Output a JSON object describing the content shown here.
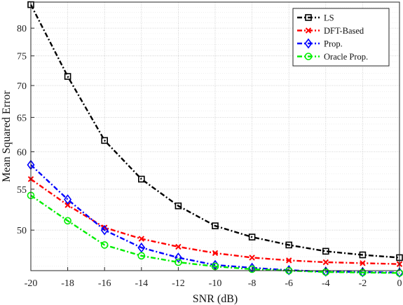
{
  "chart_data": {
    "type": "line",
    "title": "",
    "xlabel": "SNR (dB)",
    "ylabel": "Mean Squared Error",
    "x": [
      -20,
      -18,
      -16,
      -14,
      -12,
      -10,
      -8,
      -6,
      -4,
      -2,
      0
    ],
    "xticks": [
      "-20",
      "-18",
      "-16",
      "-14",
      "-12",
      "-10",
      "-8",
      "-6",
      "-4",
      "-2",
      "0"
    ],
    "xlim": [
      -20,
      0
    ],
    "yscale": "log",
    "ylim": [
      45.5,
      85
    ],
    "yticks": [
      50,
      55,
      60,
      65,
      70,
      75,
      80
    ],
    "ytick_labels": [
      "50",
      "55",
      "60",
      "65",
      "70",
      "75",
      "80"
    ],
    "grid": true,
    "legend_position": "top-right",
    "series": [
      {
        "name": "LS",
        "color": "#000000",
        "marker": "square",
        "values": [
          84.5,
          71.5,
          61.6,
          56.3,
          52.9,
          50.5,
          49.2,
          48.3,
          47.6,
          47.2,
          46.9
        ]
      },
      {
        "name": "DFT-Based",
        "color": "#ff0000",
        "marker": "x",
        "values": [
          56.3,
          53.0,
          50.3,
          49.0,
          48.1,
          47.4,
          46.9,
          46.6,
          46.4,
          46.3,
          46.2
        ]
      },
      {
        "name": "Prop.",
        "color": "#0000ff",
        "marker": "diamond",
        "values": [
          58.2,
          53.7,
          50.0,
          48.0,
          46.9,
          46.1,
          45.8,
          45.55,
          45.4,
          45.35,
          45.3
        ]
      },
      {
        "name": "Oracle Prop.",
        "color": "#00ee00",
        "marker": "circle",
        "values": [
          54.2,
          51.1,
          48.3,
          47.1,
          46.4,
          45.95,
          45.65,
          45.5,
          45.35,
          45.3,
          45.25
        ]
      }
    ]
  }
}
